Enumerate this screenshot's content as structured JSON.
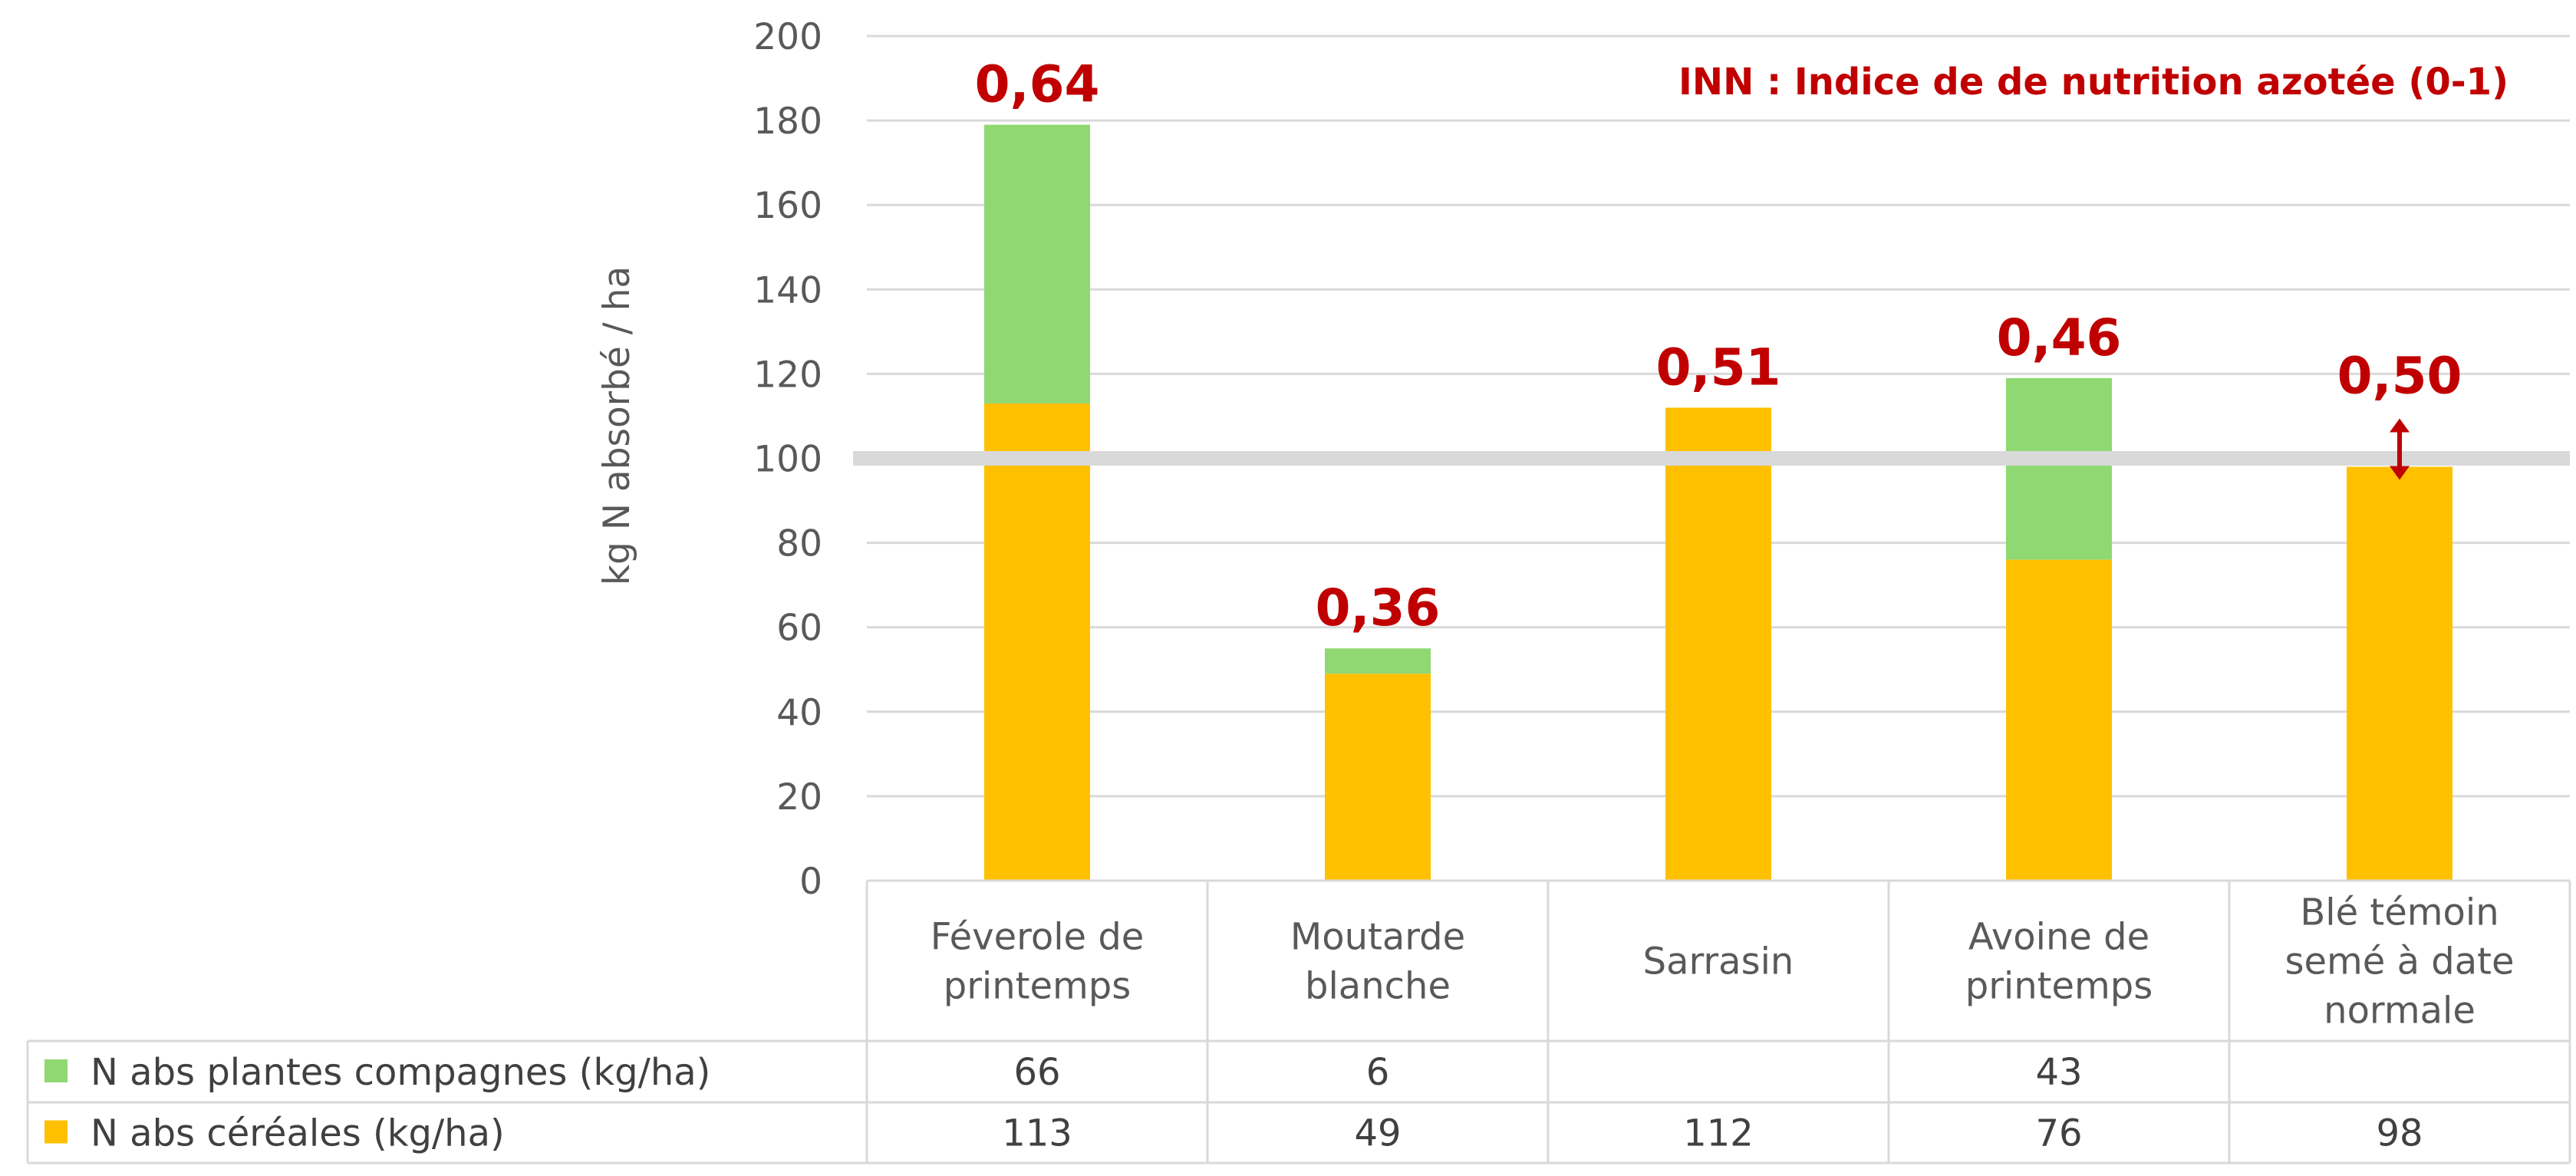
{
  "chart_data": {
    "type": "bar",
    "stacked": true,
    "categories": [
      [
        "Féverole de",
        "printemps"
      ],
      [
        "Moutarde",
        "blanche"
      ],
      [
        "Sarrasin"
      ],
      [
        "Avoine de",
        "printemps"
      ],
      [
        "Blé témoin",
        "semé à date",
        "normale"
      ]
    ],
    "series": [
      {
        "name": "N abs céréales (kg/ha)",
        "color": "#ffc000",
        "values": [
          113,
          49,
          112,
          76,
          98
        ]
      },
      {
        "name": "N abs plantes compagnes (kg/ha)",
        "color": "#8fd872",
        "values": [
          66,
          6,
          null,
          43,
          null
        ]
      }
    ],
    "table_rows": [
      {
        "label": "N abs plantes compagnes (kg/ha)",
        "color": "#8fd872",
        "cells": [
          "66",
          "6",
          "",
          "43",
          ""
        ]
      },
      {
        "label": "N abs céréales (kg/ha)",
        "color": "#ffc000",
        "cells": [
          "113",
          "49",
          "112",
          "76",
          "98"
        ]
      }
    ],
    "inn_labels": [
      "0,64",
      "0,36",
      "0,51",
      "0,46",
      "0,50"
    ],
    "annotation": "INN : Indice de de nutrition azotée (0-1)",
    "ylabel": "kg N absorbé / ha",
    "ylim": [
      0,
      200
    ],
    "yticks": [
      0,
      20,
      40,
      60,
      80,
      100,
      120,
      140,
      160,
      180,
      200
    ],
    "reference_line": 100,
    "reference_color": "#d9d9d9",
    "grid": true,
    "accent_color": "#c00000"
  }
}
